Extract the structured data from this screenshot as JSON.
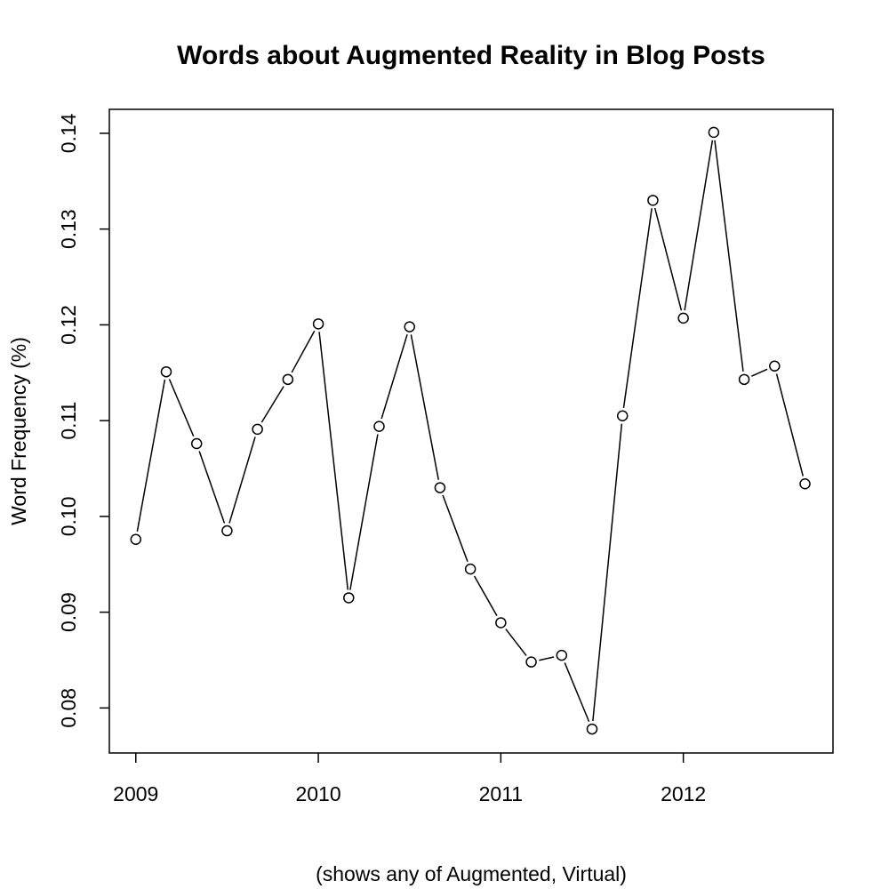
{
  "chart_data": {
    "type": "line",
    "title": "Words about Augmented Reality in Blog Posts",
    "xlabel": "(shows any of Augmented, Virtual)",
    "ylabel": "Word Frequency (%)",
    "x_ticks": [
      "2009",
      "2010",
      "2011",
      "2012"
    ],
    "y_ticks": [
      "0.08",
      "0.09",
      "0.10",
      "0.11",
      "0.12",
      "0.13",
      "0.14"
    ],
    "xlim": [
      2008.855,
      2012.82
    ],
    "ylim": [
      0.0753,
      0.1425
    ],
    "grid": false,
    "marker": "open-circle",
    "series": [
      {
        "x": [
          "2009-01",
          "2009-03",
          "2009-05",
          "2009-07",
          "2009-09",
          "2009-11",
          "2010-01",
          "2010-03",
          "2010-05",
          "2010-07",
          "2010-09",
          "2010-11",
          "2011-01",
          "2011-03",
          "2011-05",
          "2011-07",
          "2011-09",
          "2011-11",
          "2012-01",
          "2012-03",
          "2012-05",
          "2012-07",
          "2012-09"
        ],
        "y": [
          0.0976,
          0.1151,
          0.1076,
          0.0985,
          0.1091,
          0.1143,
          0.1201,
          0.0915,
          0.1094,
          0.1198,
          0.103,
          0.0945,
          0.0889,
          0.0848,
          0.0855,
          0.0778,
          0.1105,
          0.133,
          0.1207,
          0.1401,
          0.1143,
          0.1157,
          0.1034
        ]
      }
    ]
  }
}
